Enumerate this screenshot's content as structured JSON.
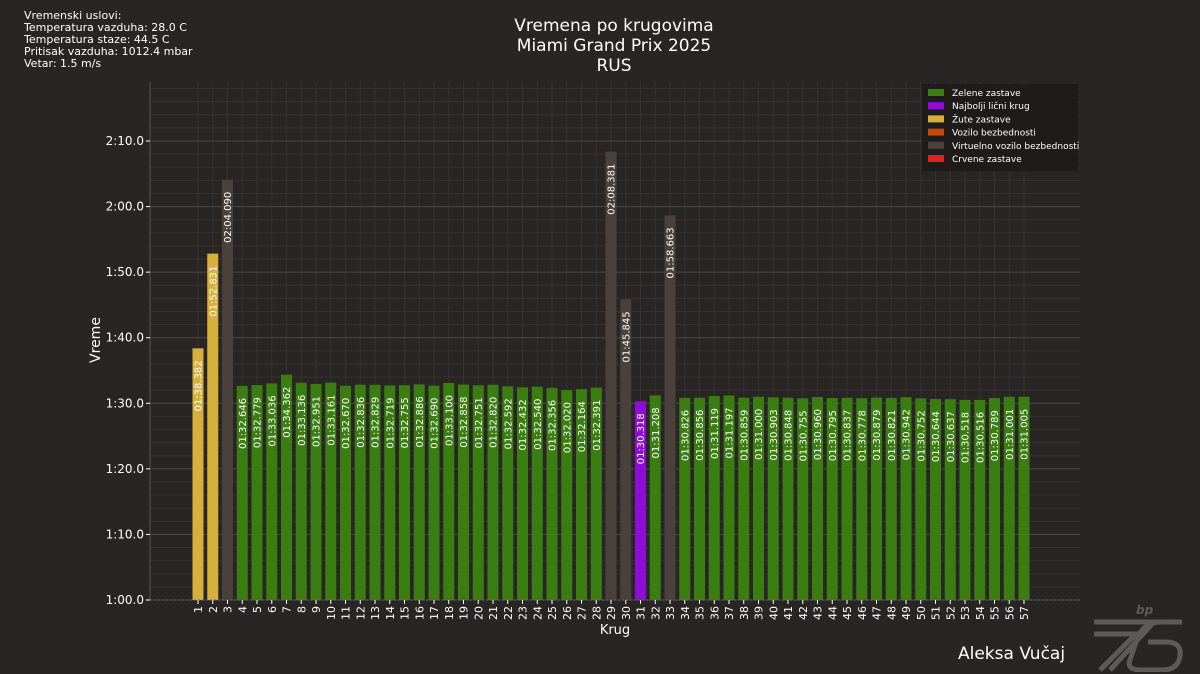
{
  "weather": {
    "heading": "Vremenski uslovi:",
    "air_temp": "Temperatura vazduha: 28.0 C",
    "track_temp": "Temperatura staze: 44.5 C",
    "pressure": "Pritisak vazduha: 1012.4 mbar",
    "wind": "Vetar: 1.5 m/s"
  },
  "titles": {
    "line1": "Vremena po krugovima",
    "line2": "Miami Grand Prix 2025",
    "line3": "RUS"
  },
  "author": "Aleksa Vučaj",
  "colors": {
    "green": "#3a7d11",
    "purple": "#8f0cd6",
    "yellow": "#d6b03a",
    "safety_car": "#c4490c",
    "virtual_safety_car": "#4a403c",
    "red": "#e0221b",
    "background": "#282524"
  },
  "chart_data": {
    "type": "bar",
    "title": "Vremena po krugovima",
    "xlabel": "Krug",
    "ylabel": "Vreme",
    "ylim_seconds": [
      60,
      139
    ],
    "yticks": [
      {
        "value": 60,
        "label": "1:00.0"
      },
      {
        "value": 70,
        "label": "1:10.0"
      },
      {
        "value": 80,
        "label": "1:20.0"
      },
      {
        "value": 90,
        "label": "1:30.0"
      },
      {
        "value": 100,
        "label": "1:40.0"
      },
      {
        "value": 110,
        "label": "1:50.0"
      },
      {
        "value": 120,
        "label": "2:00.0"
      },
      {
        "value": 130,
        "label": "2:10.0"
      }
    ],
    "grid": true,
    "legend_position": "top-right",
    "legend": [
      {
        "label": "Zelene zastave",
        "status": "green"
      },
      {
        "label": "Najbolji lični krug",
        "status": "purple"
      },
      {
        "label": "Žute zastave",
        "status": "yellow"
      },
      {
        "label": "Vozilo bezbednosti",
        "status": "safety_car"
      },
      {
        "label": "Virtuelno vozilo bezbednosti",
        "status": "virtual_safety_car"
      },
      {
        "label": "Crvene zastave",
        "status": "red"
      }
    ],
    "laps": [
      {
        "lap": 1,
        "time": "01:38.382",
        "seconds": 98.382,
        "status": "yellow"
      },
      {
        "lap": 2,
        "time": "01:52.831",
        "seconds": 112.831,
        "status": "yellow"
      },
      {
        "lap": 3,
        "time": "02:04.090",
        "seconds": 124.09,
        "status": "virtual_safety_car"
      },
      {
        "lap": 4,
        "time": "01:32.646",
        "seconds": 92.646,
        "status": "green"
      },
      {
        "lap": 5,
        "time": "01:32.779",
        "seconds": 92.779,
        "status": "green"
      },
      {
        "lap": 6,
        "time": "01:33.036",
        "seconds": 93.036,
        "status": "green"
      },
      {
        "lap": 7,
        "time": "01:34.362",
        "seconds": 94.362,
        "status": "green"
      },
      {
        "lap": 8,
        "time": "01:33.136",
        "seconds": 93.136,
        "status": "green"
      },
      {
        "lap": 9,
        "time": "01:32.951",
        "seconds": 92.951,
        "status": "green"
      },
      {
        "lap": 10,
        "time": "01:33.161",
        "seconds": 93.161,
        "status": "green"
      },
      {
        "lap": 11,
        "time": "01:32.670",
        "seconds": 92.67,
        "status": "green"
      },
      {
        "lap": 12,
        "time": "01:32.836",
        "seconds": 92.836,
        "status": "green"
      },
      {
        "lap": 13,
        "time": "01:32.829",
        "seconds": 92.829,
        "status": "green"
      },
      {
        "lap": 14,
        "time": "01:32.719",
        "seconds": 92.719,
        "status": "green"
      },
      {
        "lap": 15,
        "time": "01:32.755",
        "seconds": 92.755,
        "status": "green"
      },
      {
        "lap": 16,
        "time": "01:32.886",
        "seconds": 92.886,
        "status": "green"
      },
      {
        "lap": 17,
        "time": "01:32.690",
        "seconds": 92.69,
        "status": "green"
      },
      {
        "lap": 18,
        "time": "01:33.100",
        "seconds": 93.1,
        "status": "green"
      },
      {
        "lap": 19,
        "time": "01:32.858",
        "seconds": 92.858,
        "status": "green"
      },
      {
        "lap": 20,
        "time": "01:32.751",
        "seconds": 92.751,
        "status": "green"
      },
      {
        "lap": 21,
        "time": "01:32.820",
        "seconds": 92.82,
        "status": "green"
      },
      {
        "lap": 22,
        "time": "01:32.592",
        "seconds": 92.592,
        "status": "green"
      },
      {
        "lap": 23,
        "time": "01:32.432",
        "seconds": 92.432,
        "status": "green"
      },
      {
        "lap": 24,
        "time": "01:32.540",
        "seconds": 92.54,
        "status": "green"
      },
      {
        "lap": 25,
        "time": "01:32.356",
        "seconds": 92.356,
        "status": "green"
      },
      {
        "lap": 26,
        "time": "01:32.020",
        "seconds": 92.02,
        "status": "green"
      },
      {
        "lap": 27,
        "time": "01:32.164",
        "seconds": 92.164,
        "status": "green"
      },
      {
        "lap": 28,
        "time": "01:32.391",
        "seconds": 92.391,
        "status": "green"
      },
      {
        "lap": 29,
        "time": "02:08.381",
        "seconds": 128.381,
        "status": "virtual_safety_car"
      },
      {
        "lap": 30,
        "time": "01:45.845",
        "seconds": 105.845,
        "status": "virtual_safety_car"
      },
      {
        "lap": 31,
        "time": "01:30.318",
        "seconds": 90.318,
        "status": "purple"
      },
      {
        "lap": 32,
        "time": "01:31.208",
        "seconds": 91.208,
        "status": "green"
      },
      {
        "lap": 33,
        "time": "01:58.663",
        "seconds": 118.663,
        "status": "virtual_safety_car"
      },
      {
        "lap": 34,
        "time": "01:30.826",
        "seconds": 90.826,
        "status": "green"
      },
      {
        "lap": 35,
        "time": "01:30.856",
        "seconds": 90.856,
        "status": "green"
      },
      {
        "lap": 36,
        "time": "01:31.119",
        "seconds": 91.119,
        "status": "green"
      },
      {
        "lap": 37,
        "time": "01:31.197",
        "seconds": 91.197,
        "status": "green"
      },
      {
        "lap": 38,
        "time": "01:30.859",
        "seconds": 90.859,
        "status": "green"
      },
      {
        "lap": 39,
        "time": "01:31.000",
        "seconds": 91.0,
        "status": "green"
      },
      {
        "lap": 40,
        "time": "01:30.903",
        "seconds": 90.903,
        "status": "green"
      },
      {
        "lap": 41,
        "time": "01:30.848",
        "seconds": 90.848,
        "status": "green"
      },
      {
        "lap": 42,
        "time": "01:30.755",
        "seconds": 90.755,
        "status": "green"
      },
      {
        "lap": 43,
        "time": "01:30.960",
        "seconds": 90.96,
        "status": "green"
      },
      {
        "lap": 44,
        "time": "01:30.795",
        "seconds": 90.795,
        "status": "green"
      },
      {
        "lap": 45,
        "time": "01:30.837",
        "seconds": 90.837,
        "status": "green"
      },
      {
        "lap": 46,
        "time": "01:30.778",
        "seconds": 90.778,
        "status": "green"
      },
      {
        "lap": 47,
        "time": "01:30.879",
        "seconds": 90.879,
        "status": "green"
      },
      {
        "lap": 48,
        "time": "01:30.821",
        "seconds": 90.821,
        "status": "green"
      },
      {
        "lap": 49,
        "time": "01:30.942",
        "seconds": 90.942,
        "status": "green"
      },
      {
        "lap": 50,
        "time": "01:30.752",
        "seconds": 90.752,
        "status": "green"
      },
      {
        "lap": 51,
        "time": "01:30.644",
        "seconds": 90.644,
        "status": "green"
      },
      {
        "lap": 52,
        "time": "01:30.637",
        "seconds": 90.637,
        "status": "green"
      },
      {
        "lap": 53,
        "time": "01:30.518",
        "seconds": 90.518,
        "status": "green"
      },
      {
        "lap": 54,
        "time": "01:30.516",
        "seconds": 90.516,
        "status": "green"
      },
      {
        "lap": 55,
        "time": "01:30.789",
        "seconds": 90.789,
        "status": "green"
      },
      {
        "lap": 56,
        "time": "01:31.001",
        "seconds": 91.001,
        "status": "green"
      },
      {
        "lap": 57,
        "time": "01:31.005",
        "seconds": 91.005,
        "status": "green"
      }
    ]
  }
}
